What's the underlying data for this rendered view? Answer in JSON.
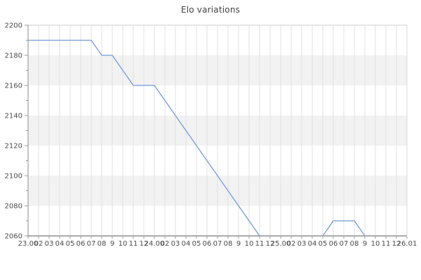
{
  "title": "Elo variations",
  "chart_data": {
    "type": "line",
    "title": "Elo variations",
    "xlabel": "",
    "ylabel": "",
    "legend": "none",
    "grid": "vertical-gridlines-with-horizontal-shaded-bands",
    "x_labels": [
      "23.00",
      "02",
      "03",
      "04",
      "05",
      "06",
      "07",
      "08",
      "9",
      "10",
      "11",
      "12",
      "24.00",
      "02",
      "03",
      "04",
      "05",
      "06",
      "07",
      "08",
      "9",
      "10",
      "11",
      "12",
      "25.00",
      "02",
      "03",
      "04",
      "05",
      "06",
      "07",
      "08",
      "9",
      "10",
      "11",
      "12",
      "26.01"
    ],
    "ylim": [
      2060,
      2200
    ],
    "ytick_step": 20,
    "yminor_step": 10,
    "y_tick_labels": [
      "2060",
      "2080",
      "2100",
      "2120",
      "2140",
      "2160",
      "2180",
      "2200"
    ],
    "band_fill_ranges": [
      [
        2160,
        2180
      ],
      [
        2120,
        2140
      ],
      [
        2080,
        2100
      ]
    ],
    "series": [
      {
        "name": "Elo",
        "points": [
          [
            0,
            2190
          ],
          [
            6,
            2190
          ],
          [
            7,
            2180
          ],
          [
            8,
            2180
          ],
          [
            10,
            2160
          ],
          [
            12,
            2160
          ],
          [
            22,
            2060
          ],
          [
            28,
            2060
          ],
          [
            29,
            2070
          ],
          [
            31,
            2070
          ],
          [
            32,
            2060
          ],
          [
            36,
            2060
          ]
        ]
      }
    ],
    "colors": {
      "line": "#7599dc",
      "band": "#f2f2f2",
      "grid": "#e0e0e0",
      "axis_bottom": "#ababab",
      "axis_left": "#8c8c8c",
      "border_top": "#cccccc",
      "border_right": "#d8d8d8",
      "tick_mark": "#999999",
      "tick_text": "#4a4a4a",
      "title_text": "#404040"
    }
  }
}
